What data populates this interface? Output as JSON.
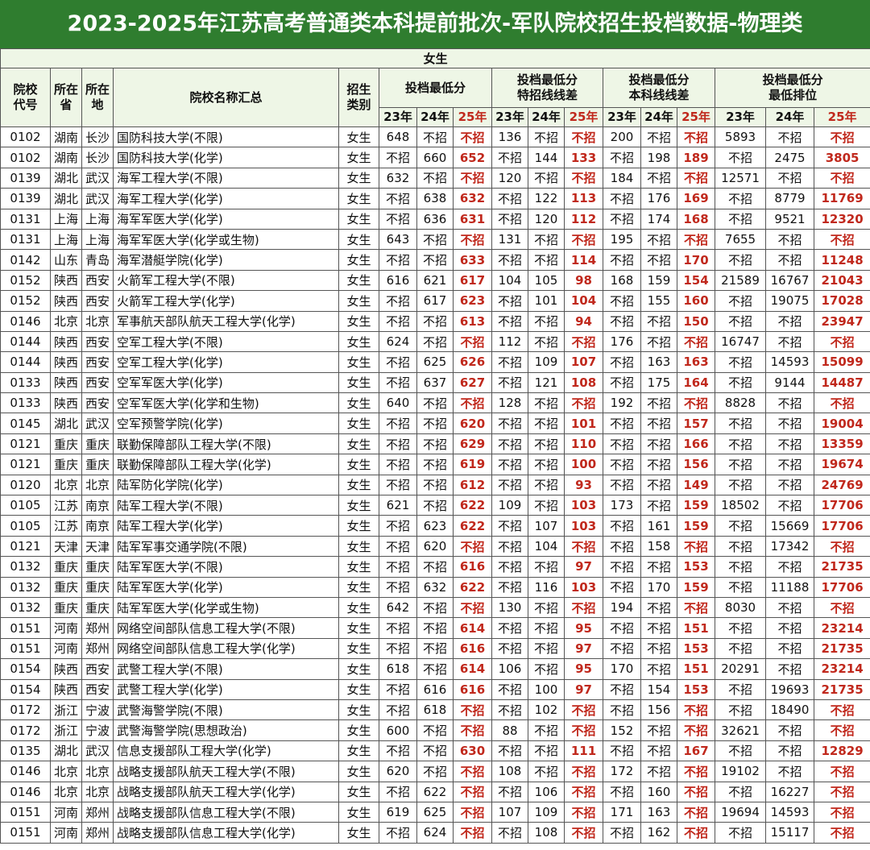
{
  "title": "2023-2025年江苏高考普通类本科提前批次-军队院校招生投档数据-物理类",
  "banner": "女生",
  "table": {
    "header": {
      "fixed": [
        "院校\n代号",
        "所在\n省",
        "所在\n地",
        "院校名称汇总",
        "招生\n类别"
      ],
      "groups": [
        {
          "label": "投档最低分",
          "years": [
            "23年",
            "24年",
            "25年"
          ]
        },
        {
          "label": "投档最低分\n特招线线差",
          "years": [
            "23年",
            "24年",
            "25年"
          ]
        },
        {
          "label": "投档最低分\n本科线线差",
          "years": [
            "23年",
            "24年",
            "25年"
          ]
        },
        {
          "label": "投档最低分\n最低排位",
          "years": [
            "23年",
            "24年",
            "25年"
          ]
        }
      ]
    },
    "rows": [
      [
        "0102",
        "湖南",
        "长沙",
        "国防科技大学(不限)",
        "女生",
        648,
        "不招",
        "不招",
        136,
        "不招",
        "不招",
        200,
        "不招",
        "不招",
        5893,
        "不招",
        "不招"
      ],
      [
        "0102",
        "湖南",
        "长沙",
        "国防科技大学(化学)",
        "女生",
        "不招",
        660,
        652,
        "不招",
        144,
        133,
        "不招",
        198,
        189,
        "不招",
        2475,
        3805
      ],
      [
        "0139",
        "湖北",
        "武汉",
        "海军工程大学(不限)",
        "女生",
        632,
        "不招",
        "不招",
        120,
        "不招",
        "不招",
        184,
        "不招",
        "不招",
        12571,
        "不招",
        "不招"
      ],
      [
        "0139",
        "湖北",
        "武汉",
        "海军工程大学(化学)",
        "女生",
        "不招",
        638,
        632,
        "不招",
        122,
        113,
        "不招",
        176,
        169,
        "不招",
        8779,
        11769
      ],
      [
        "0131",
        "上海",
        "上海",
        "海军军医大学(化学)",
        "女生",
        "不招",
        636,
        631,
        "不招",
        120,
        112,
        "不招",
        174,
        168,
        "不招",
        9521,
        12320
      ],
      [
        "0131",
        "上海",
        "上海",
        "海军军医大学(化学或生物)",
        "女生",
        643,
        "不招",
        "不招",
        131,
        "不招",
        "不招",
        195,
        "不招",
        "不招",
        7655,
        "不招",
        "不招"
      ],
      [
        "0142",
        "山东",
        "青岛",
        "海军潜艇学院(化学)",
        "女生",
        "不招",
        "不招",
        633,
        "不招",
        "不招",
        114,
        "不招",
        "不招",
        170,
        "不招",
        "不招",
        11248
      ],
      [
        "0152",
        "陕西",
        "西安",
        "火箭军工程大学(不限)",
        "女生",
        616,
        621,
        617,
        104,
        105,
        98,
        168,
        159,
        154,
        21589,
        16767,
        21043
      ],
      [
        "0152",
        "陕西",
        "西安",
        "火箭军工程大学(化学)",
        "女生",
        "不招",
        617,
        623,
        "不招",
        101,
        104,
        "不招",
        155,
        160,
        "不招",
        19075,
        17028
      ],
      [
        "0146",
        "北京",
        "北京",
        "军事航天部队航天工程大学(化学)",
        "女生",
        "不招",
        "不招",
        613,
        "不招",
        "不招",
        94,
        "不招",
        "不招",
        150,
        "不招",
        "不招",
        23947
      ],
      [
        "0144",
        "陕西",
        "西安",
        "空军工程大学(不限)",
        "女生",
        624,
        "不招",
        "不招",
        112,
        "不招",
        "不招",
        176,
        "不招",
        "不招",
        16747,
        "不招",
        "不招"
      ],
      [
        "0144",
        "陕西",
        "西安",
        "空军工程大学(化学)",
        "女生",
        "不招",
        625,
        626,
        "不招",
        109,
        107,
        "不招",
        163,
        163,
        "不招",
        14593,
        15099
      ],
      [
        "0133",
        "陕西",
        "西安",
        "空军军医大学(化学)",
        "女生",
        "不招",
        637,
        627,
        "不招",
        121,
        108,
        "不招",
        175,
        164,
        "不招",
        9144,
        14487
      ],
      [
        "0133",
        "陕西",
        "西安",
        "空军军医大学(化学和生物)",
        "女生",
        640,
        "不招",
        "不招",
        128,
        "不招",
        "不招",
        192,
        "不招",
        "不招",
        8828,
        "不招",
        "不招"
      ],
      [
        "0145",
        "湖北",
        "武汉",
        "空军预警学院(化学)",
        "女生",
        "不招",
        "不招",
        620,
        "不招",
        "不招",
        101,
        "不招",
        "不招",
        157,
        "不招",
        "不招",
        19004
      ],
      [
        "0121",
        "重庆",
        "重庆",
        "联勤保障部队工程大学(不限)",
        "女生",
        "不招",
        "不招",
        629,
        "不招",
        "不招",
        110,
        "不招",
        "不招",
        166,
        "不招",
        "不招",
        13359
      ],
      [
        "0121",
        "重庆",
        "重庆",
        "联勤保障部队工程大学(化学)",
        "女生",
        "不招",
        "不招",
        619,
        "不招",
        "不招",
        100,
        "不招",
        "不招",
        156,
        "不招",
        "不招",
        19674
      ],
      [
        "0120",
        "北京",
        "北京",
        "陆军防化学院(化学)",
        "女生",
        "不招",
        "不招",
        612,
        "不招",
        "不招",
        93,
        "不招",
        "不招",
        149,
        "不招",
        "不招",
        24769
      ],
      [
        "0105",
        "江苏",
        "南京",
        "陆军工程大学(不限)",
        "女生",
        621,
        "不招",
        622,
        109,
        "不招",
        103,
        173,
        "不招",
        159,
        18502,
        "不招",
        17706
      ],
      [
        "0105",
        "江苏",
        "南京",
        "陆军工程大学(化学)",
        "女生",
        "不招",
        623,
        622,
        "不招",
        107,
        103,
        "不招",
        161,
        159,
        "不招",
        15669,
        17706
      ],
      [
        "0121",
        "天津",
        "天津",
        "陆军军事交通学院(不限)",
        "女生",
        "不招",
        620,
        "不招",
        "不招",
        104,
        "不招",
        "不招",
        158,
        "不招",
        "不招",
        17342,
        "不招"
      ],
      [
        "0132",
        "重庆",
        "重庆",
        "陆军军医大学(不限)",
        "女生",
        "不招",
        "不招",
        616,
        "不招",
        "不招",
        97,
        "不招",
        "不招",
        153,
        "不招",
        "不招",
        21735
      ],
      [
        "0132",
        "重庆",
        "重庆",
        "陆军军医大学(化学)",
        "女生",
        "不招",
        632,
        622,
        "不招",
        116,
        103,
        "不招",
        170,
        159,
        "不招",
        11188,
        17706
      ],
      [
        "0132",
        "重庆",
        "重庆",
        "陆军军医大学(化学或生物)",
        "女生",
        642,
        "不招",
        "不招",
        130,
        "不招",
        "不招",
        194,
        "不招",
        "不招",
        8030,
        "不招",
        "不招"
      ],
      [
        "0151",
        "河南",
        "郑州",
        "网络空间部队信息工程大学(不限)",
        "女生",
        "不招",
        "不招",
        614,
        "不招",
        "不招",
        95,
        "不招",
        "不招",
        151,
        "不招",
        "不招",
        23214
      ],
      [
        "0151",
        "河南",
        "郑州",
        "网络空间部队信息工程大学(化学)",
        "女生",
        "不招",
        "不招",
        616,
        "不招",
        "不招",
        97,
        "不招",
        "不招",
        153,
        "不招",
        "不招",
        21735
      ],
      [
        "0154",
        "陕西",
        "西安",
        "武警工程大学(不限)",
        "女生",
        618,
        "不招",
        614,
        106,
        "不招",
        95,
        170,
        "不招",
        151,
        20291,
        "不招",
        23214
      ],
      [
        "0154",
        "陕西",
        "西安",
        "武警工程大学(化学)",
        "女生",
        "不招",
        616,
        616,
        "不招",
        100,
        97,
        "不招",
        154,
        153,
        "不招",
        19693,
        21735
      ],
      [
        "0172",
        "浙江",
        "宁波",
        "武警海警学院(不限)",
        "女生",
        "不招",
        618,
        "不招",
        "不招",
        102,
        "不招",
        "不招",
        156,
        "不招",
        "不招",
        18490,
        "不招"
      ],
      [
        "0172",
        "浙江",
        "宁波",
        "武警海警学院(思想政治)",
        "女生",
        600,
        "不招",
        "不招",
        88,
        "不招",
        "不招",
        152,
        "不招",
        "不招",
        32621,
        "不招",
        "不招"
      ],
      [
        "0135",
        "湖北",
        "武汉",
        "信息支援部队工程大学(化学)",
        "女生",
        "不招",
        "不招",
        630,
        "不招",
        "不招",
        111,
        "不招",
        "不招",
        167,
        "不招",
        "不招",
        12829
      ],
      [
        "0146",
        "北京",
        "北京",
        "战略支援部队航天工程大学(不限)",
        "女生",
        620,
        "不招",
        "不招",
        108,
        "不招",
        "不招",
        172,
        "不招",
        "不招",
        19102,
        "不招",
        "不招"
      ],
      [
        "0146",
        "北京",
        "北京",
        "战略支援部队航天工程大学(化学)",
        "女生",
        "不招",
        622,
        "不招",
        "不招",
        106,
        "不招",
        "不招",
        160,
        "不招",
        "不招",
        16227,
        "不招"
      ],
      [
        "0151",
        "河南",
        "郑州",
        "战略支援部队信息工程大学(不限)",
        "女生",
        619,
        625,
        "不招",
        107,
        109,
        "不招",
        171,
        163,
        "不招",
        19694,
        14593,
        "不招"
      ],
      [
        "0151",
        "河南",
        "郑州",
        "战略支援部队信息工程大学(化学)",
        "女生",
        "不招",
        624,
        "不招",
        "不招",
        108,
        "不招",
        "不招",
        162,
        "不招",
        "不招",
        15117,
        "不招"
      ]
    ]
  }
}
